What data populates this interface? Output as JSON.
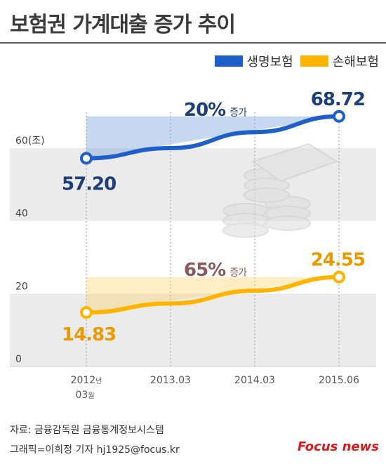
{
  "title": "보험권 가계대출 증가 추이",
  "legend": [
    {
      "name": "생명보험",
      "color": "#1f5fc9"
    },
    {
      "name": "손해보험",
      "color": "#ffb400"
    }
  ],
  "chart_data": {
    "type": "line",
    "x": [
      "2012년 03월",
      "2013.03",
      "2014.03",
      "2015.06"
    ],
    "x_tick_labels": [
      {
        "main": "2012",
        "suffix": "년",
        "sub": "03",
        "sub_suffix": "월"
      },
      {
        "main": "2013.03"
      },
      {
        "main": "2014.03"
      },
      {
        "main": "2015.06"
      }
    ],
    "y_unit_label": "(조)",
    "yticks": [
      0,
      20,
      40,
      60
    ],
    "ylim": [
      0,
      75
    ],
    "grid": true,
    "series": [
      {
        "name": "생명보험",
        "color": "#1f5fc9",
        "values": [
          57.2,
          60.0,
          64.4,
          68.72
        ],
        "start_label": "57.20",
        "end_label": "68.72",
        "growth_pct": "20%",
        "growth_suffix": "증가"
      },
      {
        "name": "손해보험",
        "color": "#ffb400",
        "values": [
          14.83,
          17.3,
          20.8,
          24.55
        ],
        "start_label": "14.83",
        "end_label": "24.55",
        "growth_pct": "65%",
        "growth_suffix": "증가"
      }
    ]
  },
  "footer": {
    "source": "자료: 금융감독원 금융통계정보시스템",
    "credit": "그래픽=이희정 기자 hj1925@focus.kr",
    "logo": "Focus news"
  }
}
